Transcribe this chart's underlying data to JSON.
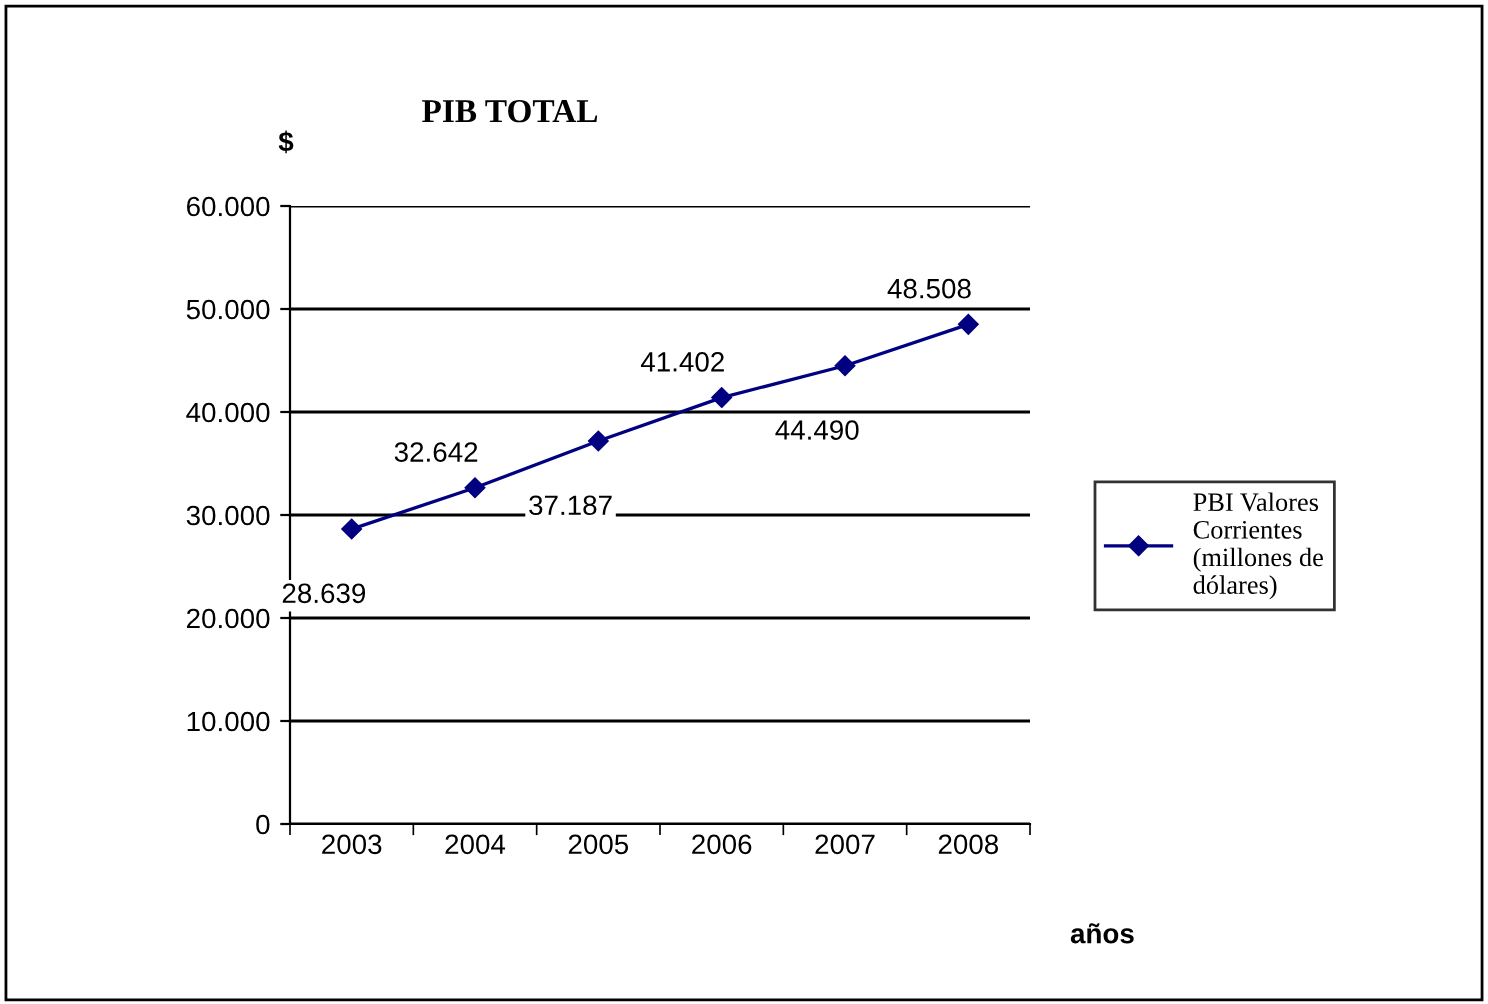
{
  "chart_data": {
    "type": "line",
    "title": "PIB TOTAL",
    "ylabel": "$",
    "xlabel": "años",
    "categories": [
      "2003",
      "2004",
      "2005",
      "2006",
      "2007",
      "2008"
    ],
    "series": [
      {
        "name": "PBI Valores Corrientes (millones de dólares)",
        "color": "#000080",
        "values": [
          28639,
          32642,
          37187,
          41402,
          44490,
          48508
        ],
        "value_labels": [
          "28.639",
          "32.642",
          "37.187",
          "41.402",
          "44.490",
          "48.508"
        ]
      }
    ],
    "ylim": [
      0,
      60000
    ],
    "yticks": [
      {
        "value": 0,
        "label": "0"
      },
      {
        "value": 10000,
        "label": "10.000"
      },
      {
        "value": 20000,
        "label": "20.000"
      },
      {
        "value": 30000,
        "label": "30.000"
      },
      {
        "value": 40000,
        "label": "40.000"
      },
      {
        "value": 50000,
        "label": "50.000"
      },
      {
        "value": 60000,
        "label": "60.000"
      }
    ],
    "grid": "y",
    "legend": "right",
    "marker": "diamond",
    "line_style": "solid"
  }
}
